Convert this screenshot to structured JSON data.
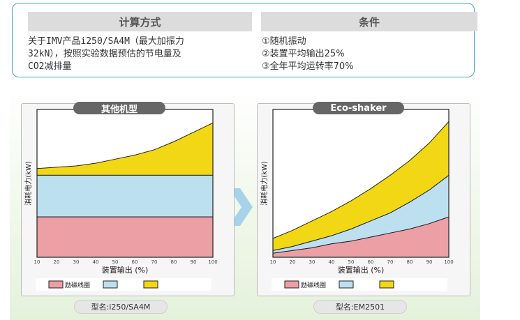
{
  "calc_header": "计算方式",
  "cond_header": "条件",
  "description": "关于IMV产品i250/SA4M（最大加振力\n32kN），按照实验数据预估的节电量及\nCO2减排量",
  "conditions": [
    "①随机振动",
    "②装置平均输出25%",
    "③全年平均运转率70%"
  ],
  "colors": {
    "coil": "#ec9fa5",
    "blue": "#bde0f1",
    "yellow": "#f2d715",
    "arrow": "#a7d3ea"
  },
  "charts": [
    {
      "pill_label": "其他机型",
      "ylabel": "消耗电力(kW)",
      "xlabel": "装置输出 (%)",
      "xticks": [
        "10",
        "20",
        "30",
        "40",
        "50",
        "60",
        "70",
        "80",
        "90",
        "100"
      ],
      "legend_coil": "励磁线圈",
      "model_label": "型名:i250/SA4M",
      "chart_data": {
        "type": "area",
        "x": [
          10,
          20,
          30,
          40,
          50,
          60,
          70,
          80,
          90,
          100
        ],
        "coil_top": [
          0.3,
          0.3,
          0.3,
          0.3,
          0.3,
          0.3,
          0.3,
          0.3,
          0.3,
          0.3
        ],
        "blue_top": [
          0.61,
          0.61,
          0.61,
          0.61,
          0.61,
          0.61,
          0.61,
          0.61,
          0.61,
          0.61
        ],
        "yellow_top": [
          0.66,
          0.67,
          0.68,
          0.7,
          0.73,
          0.76,
          0.8,
          0.86,
          0.93,
          1.0
        ],
        "ylim": [
          0,
          1.1
        ]
      }
    },
    {
      "pill_label": "Eco-shaker",
      "ylabel": "消耗电力(kW)",
      "xlabel": "装置输出 (%)",
      "xticks": [
        "10",
        "20",
        "30",
        "40",
        "50",
        "60",
        "70",
        "80",
        "90",
        "100"
      ],
      "legend_coil": "励磁线圈",
      "model_label": "型名:EM2501",
      "chart_data": {
        "type": "area",
        "x": [
          10,
          20,
          30,
          40,
          50,
          60,
          70,
          80,
          90,
          100
        ],
        "coil_top": [
          0.03,
          0.05,
          0.07,
          0.1,
          0.12,
          0.15,
          0.18,
          0.21,
          0.25,
          0.3
        ],
        "blue_top": [
          0.05,
          0.08,
          0.12,
          0.16,
          0.21,
          0.27,
          0.33,
          0.41,
          0.5,
          0.61
        ],
        "yellow_top": [
          0.14,
          0.2,
          0.27,
          0.34,
          0.42,
          0.51,
          0.61,
          0.72,
          0.85,
          1.01
        ],
        "ylim": [
          0,
          1.1
        ]
      }
    }
  ]
}
